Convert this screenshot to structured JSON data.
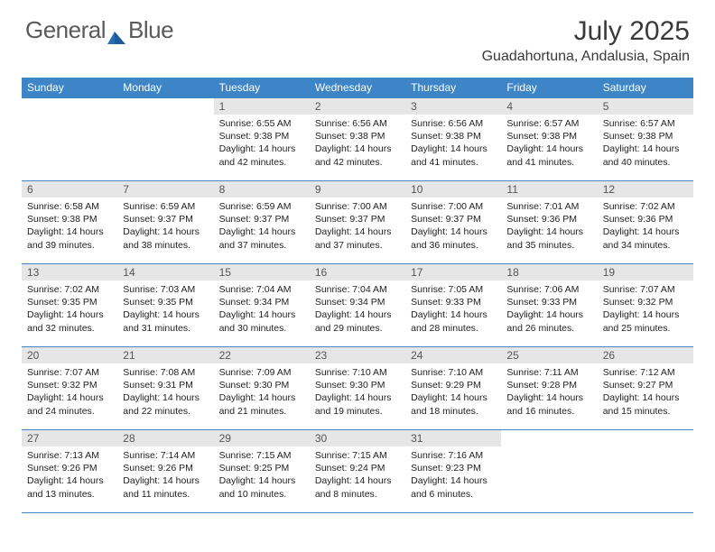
{
  "logo": {
    "text1": "General",
    "text2": "Blue",
    "text_color": "#5a5a5a",
    "blue": "#2a6db5"
  },
  "title": "July 2025",
  "location": "Guadahortuna, Andalusia, Spain",
  "colors": {
    "header_bg": "#3d85c6",
    "header_text": "#ffffff",
    "daynum_bg": "#e6e6e6",
    "rule": "#3d85c6",
    "body_text": "#222222"
  },
  "weekdays": [
    "Sunday",
    "Monday",
    "Tuesday",
    "Wednesday",
    "Thursday",
    "Friday",
    "Saturday"
  ],
  "weeks": [
    [
      null,
      null,
      {
        "n": "1",
        "sr": "6:55 AM",
        "ss": "9:38 PM",
        "dl": "14 hours and 42 minutes."
      },
      {
        "n": "2",
        "sr": "6:56 AM",
        "ss": "9:38 PM",
        "dl": "14 hours and 42 minutes."
      },
      {
        "n": "3",
        "sr": "6:56 AM",
        "ss": "9:38 PM",
        "dl": "14 hours and 41 minutes."
      },
      {
        "n": "4",
        "sr": "6:57 AM",
        "ss": "9:38 PM",
        "dl": "14 hours and 41 minutes."
      },
      {
        "n": "5",
        "sr": "6:57 AM",
        "ss": "9:38 PM",
        "dl": "14 hours and 40 minutes."
      }
    ],
    [
      {
        "n": "6",
        "sr": "6:58 AM",
        "ss": "9:38 PM",
        "dl": "14 hours and 39 minutes."
      },
      {
        "n": "7",
        "sr": "6:59 AM",
        "ss": "9:37 PM",
        "dl": "14 hours and 38 minutes."
      },
      {
        "n": "8",
        "sr": "6:59 AM",
        "ss": "9:37 PM",
        "dl": "14 hours and 37 minutes."
      },
      {
        "n": "9",
        "sr": "7:00 AM",
        "ss": "9:37 PM",
        "dl": "14 hours and 37 minutes."
      },
      {
        "n": "10",
        "sr": "7:00 AM",
        "ss": "9:37 PM",
        "dl": "14 hours and 36 minutes."
      },
      {
        "n": "11",
        "sr": "7:01 AM",
        "ss": "9:36 PM",
        "dl": "14 hours and 35 minutes."
      },
      {
        "n": "12",
        "sr": "7:02 AM",
        "ss": "9:36 PM",
        "dl": "14 hours and 34 minutes."
      }
    ],
    [
      {
        "n": "13",
        "sr": "7:02 AM",
        "ss": "9:35 PM",
        "dl": "14 hours and 32 minutes."
      },
      {
        "n": "14",
        "sr": "7:03 AM",
        "ss": "9:35 PM",
        "dl": "14 hours and 31 minutes."
      },
      {
        "n": "15",
        "sr": "7:04 AM",
        "ss": "9:34 PM",
        "dl": "14 hours and 30 minutes."
      },
      {
        "n": "16",
        "sr": "7:04 AM",
        "ss": "9:34 PM",
        "dl": "14 hours and 29 minutes."
      },
      {
        "n": "17",
        "sr": "7:05 AM",
        "ss": "9:33 PM",
        "dl": "14 hours and 28 minutes."
      },
      {
        "n": "18",
        "sr": "7:06 AM",
        "ss": "9:33 PM",
        "dl": "14 hours and 26 minutes."
      },
      {
        "n": "19",
        "sr": "7:07 AM",
        "ss": "9:32 PM",
        "dl": "14 hours and 25 minutes."
      }
    ],
    [
      {
        "n": "20",
        "sr": "7:07 AM",
        "ss": "9:32 PM",
        "dl": "14 hours and 24 minutes."
      },
      {
        "n": "21",
        "sr": "7:08 AM",
        "ss": "9:31 PM",
        "dl": "14 hours and 22 minutes."
      },
      {
        "n": "22",
        "sr": "7:09 AM",
        "ss": "9:30 PM",
        "dl": "14 hours and 21 minutes."
      },
      {
        "n": "23",
        "sr": "7:10 AM",
        "ss": "9:30 PM",
        "dl": "14 hours and 19 minutes."
      },
      {
        "n": "24",
        "sr": "7:10 AM",
        "ss": "9:29 PM",
        "dl": "14 hours and 18 minutes."
      },
      {
        "n": "25",
        "sr": "7:11 AM",
        "ss": "9:28 PM",
        "dl": "14 hours and 16 minutes."
      },
      {
        "n": "26",
        "sr": "7:12 AM",
        "ss": "9:27 PM",
        "dl": "14 hours and 15 minutes."
      }
    ],
    [
      {
        "n": "27",
        "sr": "7:13 AM",
        "ss": "9:26 PM",
        "dl": "14 hours and 13 minutes."
      },
      {
        "n": "28",
        "sr": "7:14 AM",
        "ss": "9:26 PM",
        "dl": "14 hours and 11 minutes."
      },
      {
        "n": "29",
        "sr": "7:15 AM",
        "ss": "9:25 PM",
        "dl": "14 hours and 10 minutes."
      },
      {
        "n": "30",
        "sr": "7:15 AM",
        "ss": "9:24 PM",
        "dl": "14 hours and 8 minutes."
      },
      {
        "n": "31",
        "sr": "7:16 AM",
        "ss": "9:23 PM",
        "dl": "14 hours and 6 minutes."
      },
      null,
      null
    ]
  ],
  "labels": {
    "sunrise": "Sunrise:",
    "sunset": "Sunset:",
    "daylight": "Daylight:"
  }
}
